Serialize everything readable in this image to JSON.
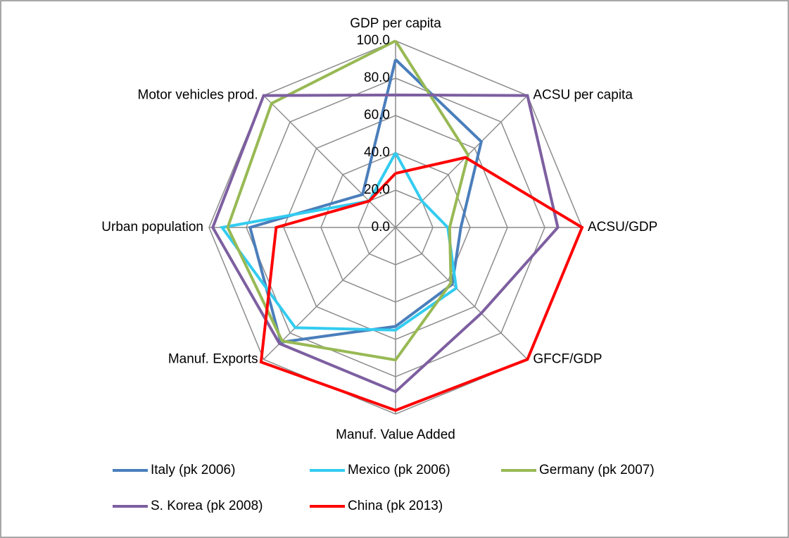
{
  "chart_data": {
    "type": "radar",
    "categories": [
      "GDP per capita",
      "ACSU per capita",
      "ACSU/GDP",
      "GFCF/GDP",
      "Manuf. Value Added",
      "Manuf. Exports",
      "Urban population",
      "Motor vehicles prod."
    ],
    "series": [
      {
        "name": "Italy (pk 2006)",
        "color": "#4a7ebb",
        "values": [
          90,
          65,
          35,
          43,
          53,
          87,
          78,
          25
        ]
      },
      {
        "name": "Mexico (pk 2006)",
        "color": "#33ccf0",
        "values": [
          40,
          20,
          28,
          46,
          55,
          76,
          93,
          20
        ]
      },
      {
        "name": "Germany (pk 2007)",
        "color": "#98b954",
        "values": [
          100,
          55,
          29,
          42,
          71,
          86,
          90,
          94
        ]
      },
      {
        "name": "S. Korea (pk 2008)",
        "color": "#7d5fa0",
        "values": [
          71,
          100,
          87,
          65,
          88,
          88,
          98,
          100
        ]
      },
      {
        "name": "China (pk 2013)",
        "color": "#ff0000",
        "values": [
          29,
          53,
          100,
          100,
          98,
          102,
          64,
          20
        ]
      }
    ],
    "ylim": [
      0,
      100
    ],
    "yticks": [
      {
        "value": 0,
        "label": "0.0"
      },
      {
        "value": 20,
        "label": "20.0"
      },
      {
        "value": 40,
        "label": "40.0"
      },
      {
        "value": 60,
        "label": "60.0"
      },
      {
        "value": 80,
        "label": "80.0"
      },
      {
        "value": 100,
        "label": "100.0"
      }
    ],
    "grid": true
  }
}
